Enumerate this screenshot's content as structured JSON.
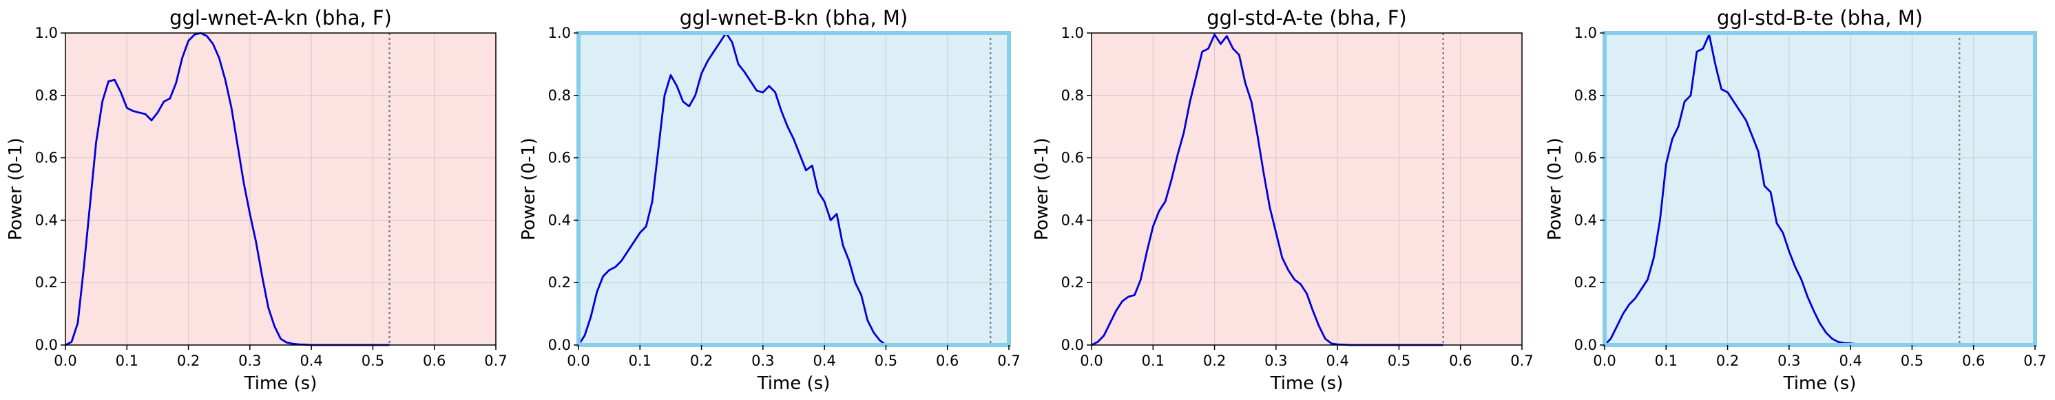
{
  "chart_data": [
    {
      "type": "line",
      "title": "ggl-wnet-A-kn (bha, F)",
      "xlabel": "Time (s)",
      "ylabel": "Power (0-1)",
      "xlim": [
        0,
        0.7
      ],
      "ylim": [
        0,
        1.0
      ],
      "xticks": [
        "0.0",
        "0.1",
        "0.2",
        "0.3",
        "0.4",
        "0.5",
        "0.6",
        "0.7"
      ],
      "yticks": [
        "0.0",
        "0.2",
        "0.4",
        "0.6",
        "0.8",
        "1.0"
      ],
      "grid": true,
      "background": "#fde2e2",
      "border_color": "#000000",
      "line_color": "#0000dd",
      "marker_x": 0.527,
      "marker_color": "#808080",
      "x": [
        0.0,
        0.01,
        0.02,
        0.03,
        0.04,
        0.05,
        0.06,
        0.07,
        0.08,
        0.09,
        0.1,
        0.11,
        0.12,
        0.13,
        0.14,
        0.15,
        0.16,
        0.17,
        0.18,
        0.19,
        0.2,
        0.21,
        0.22,
        0.23,
        0.24,
        0.25,
        0.26,
        0.27,
        0.28,
        0.29,
        0.3,
        0.31,
        0.32,
        0.33,
        0.34,
        0.35,
        0.36,
        0.37,
        0.38,
        0.39,
        0.4,
        0.5,
        0.527
      ],
      "y": [
        0.0,
        0.01,
        0.07,
        0.25,
        0.45,
        0.65,
        0.78,
        0.845,
        0.85,
        0.81,
        0.76,
        0.75,
        0.745,
        0.74,
        0.72,
        0.745,
        0.78,
        0.79,
        0.84,
        0.92,
        0.975,
        0.995,
        1.0,
        0.99,
        0.965,
        0.92,
        0.85,
        0.76,
        0.64,
        0.52,
        0.42,
        0.33,
        0.22,
        0.12,
        0.06,
        0.02,
        0.008,
        0.004,
        0.002,
        0.001,
        0.0,
        0.0,
        0.0
      ]
    },
    {
      "type": "line",
      "title": "ggl-wnet-B-kn (bha, M)",
      "xlabel": "Time (s)",
      "ylabel": "Power (0-1)",
      "xlim": [
        0,
        0.7
      ],
      "ylim": [
        0,
        1.0
      ],
      "xticks": [
        "0.0",
        "0.1",
        "0.2",
        "0.3",
        "0.4",
        "0.5",
        "0.6",
        "0.7"
      ],
      "yticks": [
        "0.0",
        "0.2",
        "0.4",
        "0.6",
        "0.8",
        "1.0"
      ],
      "grid": true,
      "background": "#ddeff6",
      "border_color": "#87ceeb",
      "line_color": "#0000dd",
      "marker_x": 0.67,
      "marker_color": "#808080",
      "x": [
        0.0,
        0.01,
        0.02,
        0.03,
        0.04,
        0.05,
        0.06,
        0.07,
        0.08,
        0.09,
        0.1,
        0.11,
        0.12,
        0.13,
        0.14,
        0.15,
        0.16,
        0.17,
        0.18,
        0.19,
        0.2,
        0.21,
        0.22,
        0.23,
        0.24,
        0.25,
        0.26,
        0.27,
        0.28,
        0.29,
        0.3,
        0.31,
        0.32,
        0.33,
        0.34,
        0.35,
        0.36,
        0.37,
        0.38,
        0.39,
        0.4,
        0.41,
        0.42,
        0.43,
        0.44,
        0.45,
        0.46,
        0.47,
        0.48,
        0.49,
        0.5
      ],
      "y": [
        0.0,
        0.03,
        0.09,
        0.17,
        0.22,
        0.24,
        0.25,
        0.27,
        0.3,
        0.33,
        0.36,
        0.38,
        0.46,
        0.63,
        0.8,
        0.865,
        0.83,
        0.78,
        0.765,
        0.8,
        0.87,
        0.91,
        0.94,
        0.97,
        1.0,
        0.97,
        0.9,
        0.875,
        0.845,
        0.815,
        0.81,
        0.83,
        0.81,
        0.75,
        0.7,
        0.66,
        0.61,
        0.56,
        0.575,
        0.49,
        0.46,
        0.4,
        0.42,
        0.32,
        0.27,
        0.2,
        0.16,
        0.08,
        0.04,
        0.015,
        0.0
      ]
    },
    {
      "type": "line",
      "title": "ggl-std-A-te (bha, F)",
      "xlabel": "Time (s)",
      "ylabel": "Power (0-1)",
      "xlim": [
        0,
        0.7
      ],
      "ylim": [
        0,
        1.0
      ],
      "xticks": [
        "0.0",
        "0.1",
        "0.2",
        "0.3",
        "0.4",
        "0.5",
        "0.6",
        "0.7"
      ],
      "yticks": [
        "0.0",
        "0.2",
        "0.4",
        "0.6",
        "0.8",
        "1.0"
      ],
      "grid": true,
      "background": "#fde2e2",
      "border_color": "#000000",
      "line_color": "#0000dd",
      "marker_x": 0.572,
      "marker_color": "#808080",
      "x": [
        0.0,
        0.01,
        0.02,
        0.03,
        0.04,
        0.05,
        0.06,
        0.07,
        0.08,
        0.09,
        0.1,
        0.11,
        0.12,
        0.13,
        0.14,
        0.15,
        0.16,
        0.17,
        0.18,
        0.19,
        0.2,
        0.21,
        0.22,
        0.23,
        0.24,
        0.25,
        0.26,
        0.27,
        0.28,
        0.29,
        0.3,
        0.31,
        0.32,
        0.33,
        0.34,
        0.35,
        0.36,
        0.37,
        0.38,
        0.39,
        0.4,
        0.41,
        0.42,
        0.5,
        0.572
      ],
      "y": [
        0.0,
        0.01,
        0.03,
        0.07,
        0.11,
        0.14,
        0.155,
        0.16,
        0.21,
        0.3,
        0.38,
        0.43,
        0.46,
        0.53,
        0.61,
        0.68,
        0.78,
        0.86,
        0.94,
        0.95,
        0.995,
        0.965,
        0.99,
        0.95,
        0.93,
        0.84,
        0.78,
        0.67,
        0.55,
        0.44,
        0.36,
        0.28,
        0.24,
        0.21,
        0.195,
        0.165,
        0.11,
        0.06,
        0.02,
        0.005,
        0.002,
        0.001,
        0.0,
        0.0,
        0.0
      ]
    },
    {
      "type": "line",
      "title": "ggl-std-B-te (bha, M)",
      "xlabel": "Time (s)",
      "ylabel": "Power (0-1)",
      "xlim": [
        0,
        0.7
      ],
      "ylim": [
        0,
        1.0
      ],
      "xticks": [
        "0.0",
        "0.1",
        "0.2",
        "0.3",
        "0.4",
        "0.5",
        "0.6",
        "0.7"
      ],
      "yticks": [
        "0.0",
        "0.2",
        "0.4",
        "0.6",
        "0.8",
        "1.0"
      ],
      "grid": true,
      "background": "#ddeff6",
      "border_color": "#87ceeb",
      "line_color": "#0000dd",
      "marker_x": 0.577,
      "marker_color": "#808080",
      "x": [
        0.0,
        0.01,
        0.02,
        0.03,
        0.04,
        0.05,
        0.06,
        0.07,
        0.08,
        0.09,
        0.1,
        0.11,
        0.12,
        0.13,
        0.14,
        0.15,
        0.16,
        0.17,
        0.18,
        0.19,
        0.2,
        0.21,
        0.22,
        0.23,
        0.24,
        0.25,
        0.26,
        0.27,
        0.28,
        0.29,
        0.3,
        0.31,
        0.32,
        0.33,
        0.34,
        0.35,
        0.36,
        0.37,
        0.38,
        0.39,
        0.4,
        0.41,
        0.42,
        0.43,
        0.44,
        0.45
      ],
      "y": [
        0.0,
        0.02,
        0.06,
        0.1,
        0.13,
        0.15,
        0.18,
        0.21,
        0.28,
        0.4,
        0.58,
        0.66,
        0.7,
        0.78,
        0.8,
        0.94,
        0.95,
        0.995,
        0.9,
        0.82,
        0.81,
        0.78,
        0.75,
        0.72,
        0.67,
        0.62,
        0.51,
        0.49,
        0.39,
        0.36,
        0.3,
        0.25,
        0.21,
        0.155,
        0.11,
        0.07,
        0.04,
        0.02,
        0.01,
        0.006,
        0.005,
        0.003,
        0.002,
        0.001,
        0.0,
        0.0
      ]
    }
  ]
}
